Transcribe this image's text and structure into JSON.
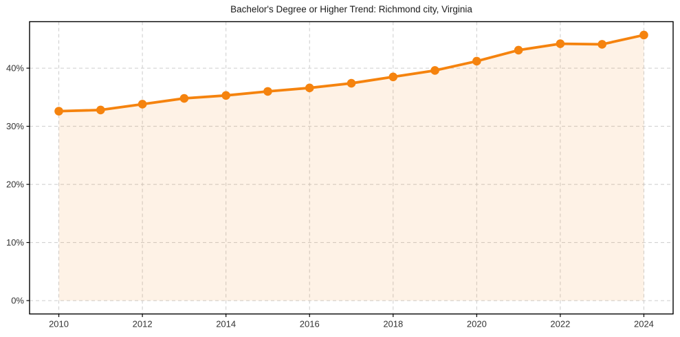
{
  "chart_data": {
    "type": "line",
    "title": "Bachelor's Degree or Higher Trend: Richmond city, Virginia",
    "xlabel": "",
    "ylabel": "",
    "x": [
      2010,
      2011,
      2012,
      2013,
      2014,
      2015,
      2016,
      2017,
      2018,
      2019,
      2020,
      2021,
      2022,
      2023,
      2024
    ],
    "values": [
      32.6,
      32.8,
      33.8,
      34.8,
      35.3,
      36.0,
      36.6,
      37.4,
      38.5,
      39.6,
      41.2,
      43.1,
      44.2,
      44.1,
      45.7
    ],
    "x_ticks": {
      "values": [
        2010,
        2012,
        2014,
        2016,
        2018,
        2020,
        2022,
        2024
      ],
      "labels": [
        "2010",
        "2012",
        "2014",
        "2016",
        "2018",
        "2020",
        "2022",
        "2024"
      ]
    },
    "y_ticks": {
      "values": [
        0,
        10,
        20,
        30,
        40
      ],
      "labels": [
        "0%",
        "10%",
        "20%",
        "30%",
        "40%"
      ]
    },
    "xlim": [
      2009.3,
      2024.7
    ],
    "ylim": [
      -2.3,
      48.0
    ],
    "grid": true,
    "legend": false,
    "area_baseline": 0,
    "marker": "circle",
    "colors": {
      "line": "#f5830e",
      "marker": "#f5830e",
      "fill": "rgba(245, 131, 14, 0.10)",
      "grid": "#cccccc",
      "spine": "#000000",
      "tick_text": "#333333",
      "title_text": "#1a1a1a",
      "background": "#ffffff"
    }
  }
}
